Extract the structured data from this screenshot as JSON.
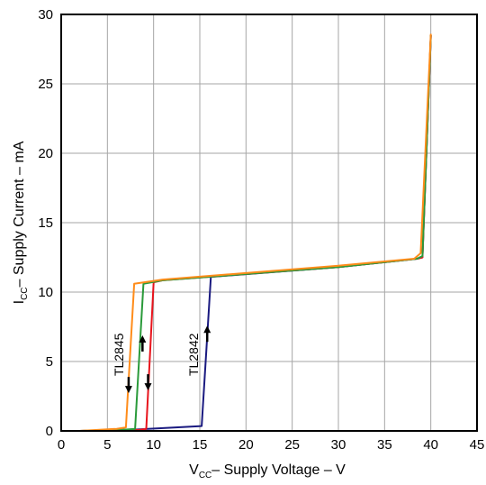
{
  "chart_data": {
    "type": "line",
    "title": "",
    "xlabel": {
      "main": "V",
      "sub": "CC",
      "rest": "– Supply Voltage – V"
    },
    "ylabel": {
      "main": "I",
      "sub": "CC",
      "rest": "– Supply Current – mA"
    },
    "xlim": [
      0,
      45
    ],
    "ylim": [
      0,
      30
    ],
    "xticks": [
      0,
      5,
      10,
      15,
      20,
      25,
      30,
      35,
      40,
      45
    ],
    "yticks": [
      0,
      5,
      10,
      15,
      20,
      25,
      30
    ],
    "grid": true,
    "legend": "none",
    "series": [
      {
        "color": "#1a1a80",
        "points": [
          [
            2,
            0
          ],
          [
            8,
            0.1
          ],
          [
            15.2,
            0.35
          ],
          [
            16.2,
            11.1
          ],
          [
            30,
            11.8
          ],
          [
            38.5,
            12.4
          ],
          [
            39.1,
            12.5
          ],
          [
            40,
            28.5
          ]
        ]
      },
      {
        "color": "#e8141c",
        "points": [
          [
            2,
            0
          ],
          [
            8.5,
            0.08
          ],
          [
            9.2,
            0.15
          ],
          [
            10,
            10.7
          ],
          [
            11,
            10.85
          ],
          [
            30,
            11.8
          ],
          [
            38.5,
            12.4
          ],
          [
            39.1,
            12.5
          ],
          [
            40,
            28.5
          ]
        ]
      },
      {
        "color": "#2a9a3a",
        "points": [
          [
            2,
            0
          ],
          [
            7,
            0.1
          ],
          [
            8,
            0.15
          ],
          [
            8.9,
            10.6
          ],
          [
            11,
            10.85
          ],
          [
            30,
            11.8
          ],
          [
            38.5,
            12.4
          ],
          [
            39.1,
            12.6
          ],
          [
            40,
            28.5
          ]
        ]
      },
      {
        "color": "#ff8c1a",
        "points": [
          [
            2,
            0
          ],
          [
            6,
            0.15
          ],
          [
            7,
            0.25
          ],
          [
            7.9,
            10.6
          ],
          [
            11,
            10.9
          ],
          [
            30,
            11.9
          ],
          [
            38.2,
            12.4
          ],
          [
            38.9,
            12.8
          ],
          [
            40,
            28.6
          ]
        ]
      }
    ],
    "annotations": [
      {
        "text": "TL2845",
        "x": 6.7,
        "y": 5.5
      },
      {
        "text": "TL2842",
        "x": 14.8,
        "y": 5.5
      }
    ],
    "arrows": [
      {
        "x": 7.3,
        "y": 3.3,
        "dir": "down"
      },
      {
        "x": 8.8,
        "y": 6.3,
        "dir": "up"
      },
      {
        "x": 9.4,
        "y": 3.5,
        "dir": "down"
      },
      {
        "x": 15.8,
        "y": 7.0,
        "dir": "up"
      }
    ]
  }
}
